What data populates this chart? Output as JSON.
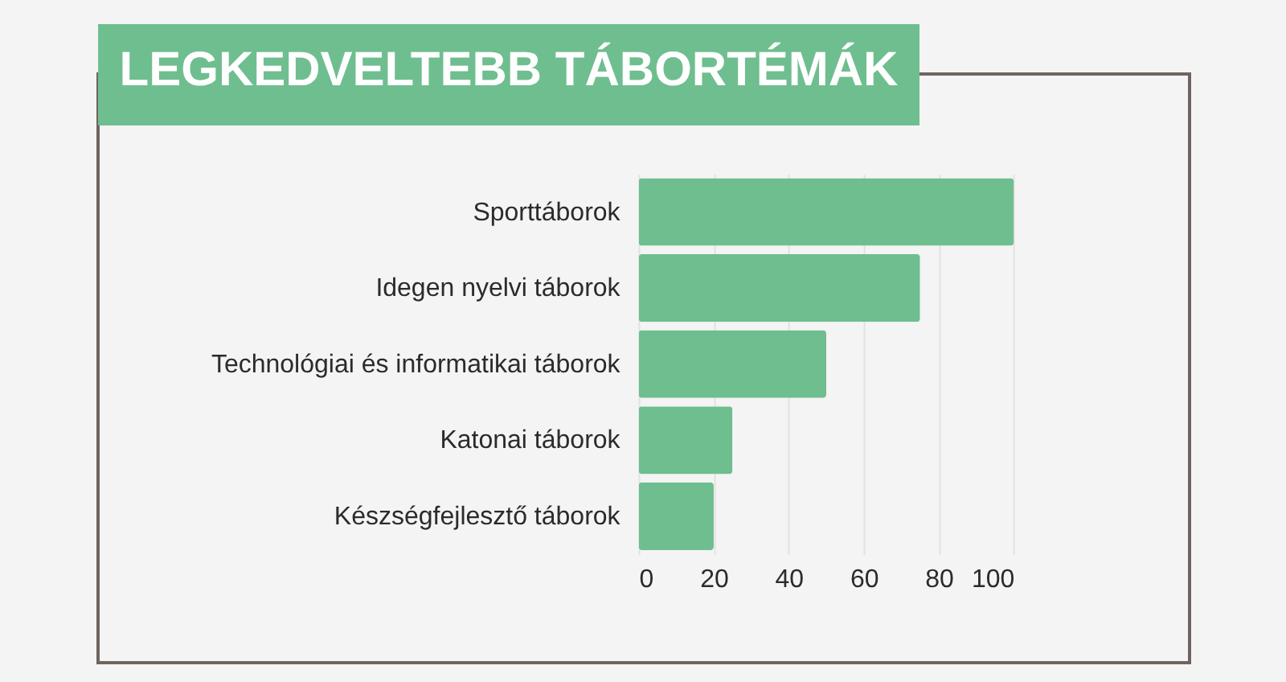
{
  "chart_data": {
    "type": "bar",
    "orientation": "horizontal",
    "title": "LEGKEDVELTEBB TÁBORTÉMÁK",
    "categories": [
      "Sporttáborok",
      "Idegen nyelvi táborok",
      "Technológiai és informatikai táborok",
      "Katonai táborok",
      "Készségfejlesztő táborok"
    ],
    "values": [
      100,
      75,
      50,
      25,
      20
    ],
    "color": "#6fbe8f",
    "xlim": [
      0,
      100
    ],
    "xticks": [
      0,
      20,
      40,
      60,
      80,
      100
    ],
    "grid": "x"
  }
}
